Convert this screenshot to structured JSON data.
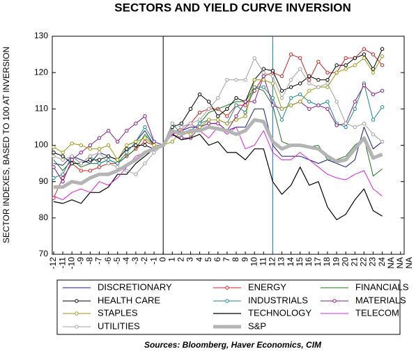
{
  "chart_data": {
    "type": "line",
    "title": "SECTORS AND YIELD CURVE INVERSION",
    "y_label": "SECTOR INDEXES, BASED TO 100 AT INVERSION",
    "source": "Sources:  Bloomberg, Haver Economics, CIM",
    "categories": [
      "-12",
      "-11",
      "-10",
      "-9",
      "-8",
      "-7",
      "-6",
      "-5",
      "-4",
      "-3",
      "-2",
      "-1",
      "0",
      "1",
      "2",
      "3",
      "4",
      "5",
      "6",
      "7",
      "8",
      "9",
      "10",
      "11",
      "12",
      "13",
      "14",
      "15",
      "16",
      "17",
      "18",
      "19",
      "20",
      "21",
      "22",
      "23",
      "24",
      "NA",
      "NA",
      "NA"
    ],
    "ylim": [
      70,
      130
    ],
    "yticks": [
      70,
      80,
      90,
      100,
      110,
      120,
      130
    ],
    "reference_lines": [
      {
        "at": "0",
        "color": "#000000"
      },
      {
        "at": "12",
        "color": "#1f6f9f"
      }
    ],
    "series": [
      {
        "name": "DISCRETIONARY",
        "color": "#1a1a8c",
        "markers": false,
        "width": 1,
        "values": [
          95,
          94.5,
          97,
          96,
          95,
          98,
          97,
          96,
          100,
          101,
          104,
          100,
          100,
          103,
          104,
          105,
          105,
          106,
          106,
          104,
          105,
          105,
          110,
          110,
          100,
          97,
          97,
          97,
          96,
          95,
          96,
          95,
          94,
          96,
          105,
          99,
          101,
          null,
          null,
          null
        ]
      },
      {
        "name": "ENERGY",
        "color": "#d42020",
        "markers": true,
        "width": 1,
        "values": [
          85.5,
          91,
          95,
          93,
          93,
          94,
          95,
          95,
          97,
          99,
          101,
          100,
          100,
          103,
          105,
          106,
          109,
          110,
          110,
          108,
          111,
          111,
          115,
          119,
          120,
          119,
          125,
          124,
          118,
          123,
          120,
          120,
          124,
          124,
          126.5,
          125,
          122,
          null,
          null,
          null
        ]
      },
      {
        "name": "FINANCIALS",
        "color": "#1a7a1a",
        "markers": false,
        "width": 1,
        "values": [
          96,
          93,
          96,
          94,
          95,
          95,
          96,
          95,
          97,
          99,
          103,
          100,
          100,
          104,
          103,
          104,
          106,
          109,
          110,
          111,
          112,
          112,
          116,
          115,
          111,
          101,
          100,
          100,
          99.5,
          100,
          96,
          96,
          97,
          100,
          102,
          91.5,
          93.5,
          null,
          null,
          null
        ]
      },
      {
        "name": "HEALTH CARE",
        "color": "#000000",
        "markers": true,
        "width": 1,
        "values": [
          98,
          97,
          95,
          95,
          96,
          96,
          97,
          96,
          99,
          100,
          100,
          99,
          100,
          105,
          106,
          110,
          114,
          112,
          108,
          110,
          113,
          112,
          118,
          121,
          120.5,
          115,
          116,
          117,
          119,
          118,
          118,
          122,
          122,
          124,
          125,
          121,
          126.5,
          null,
          null,
          null
        ]
      },
      {
        "name": "INDUSTRIALS",
        "color": "#1a8a8a",
        "markers": true,
        "width": 1,
        "values": [
          91,
          92,
          97,
          95,
          97,
          95,
          96,
          95,
          98,
          101,
          105,
          101,
          100,
          106,
          103,
          104,
          106,
          107,
          107,
          106,
          111,
          109,
          116,
          116,
          113,
          107,
          113,
          114,
          112,
          111,
          112,
          106,
          105,
          110,
          117,
          107,
          110.5,
          null,
          null,
          null
        ]
      },
      {
        "name": "MATERIALS",
        "color": "#8a1a8a",
        "markers": true,
        "width": 1,
        "values": [
          94,
          90,
          96,
          98,
          100,
          102,
          104,
          101,
          104,
          106,
          108,
          101,
          100,
          103,
          102,
          102,
          105,
          106,
          106,
          104,
          108,
          112,
          112,
          119,
          111,
          110,
          111,
          112,
          110,
          111,
          110,
          105.5,
          106,
          112,
          116.5,
          114,
          115,
          null,
          null,
          null
        ]
      },
      {
        "name": "STAPLES",
        "color": "#9a9a10",
        "markers": true,
        "width": 1,
        "values": [
          99.5,
          98,
          100.5,
          100,
          99,
          99,
          100,
          96,
          100,
          101,
          102,
          100,
          100,
          101,
          104,
          103,
          105,
          107,
          107,
          106,
          107,
          108,
          118,
          118,
          117,
          110,
          111,
          112,
          115,
          116,
          116,
          120,
          121,
          122,
          124,
          120,
          124.5,
          null,
          null,
          null
        ]
      },
      {
        "name": "TECHNOLOGY",
        "color": "#000000",
        "markers": false,
        "width": 1.2,
        "values": [
          84.5,
          84,
          85,
          84,
          87,
          87,
          88.5,
          92,
          92,
          95,
          97,
          99,
          100,
          103,
          101.5,
          102,
          103,
          100,
          101,
          98,
          98,
          96,
          99,
          99,
          90,
          86.5,
          89,
          94,
          89,
          90,
          83,
          79.5,
          81,
          85,
          88,
          82,
          80.5,
          null,
          null,
          null
        ]
      },
      {
        "name": "TELECOM",
        "color": "#e020e0",
        "markers": false,
        "width": 1,
        "values": [
          86,
          85,
          87,
          88,
          87,
          90,
          89,
          91,
          94,
          97,
          98,
          99,
          100,
          103,
          104,
          106,
          104,
          102,
          105,
          103,
          105,
          99,
          100,
          104,
          98,
          96,
          96,
          98,
          96,
          94,
          92,
          91,
          90.5,
          92,
          93,
          88,
          86,
          null,
          null,
          null
        ]
      },
      {
        "name": "UTILITIES",
        "color": "#a0a0a0",
        "markers": true,
        "width": 1,
        "values": [
          97,
          96,
          97,
          95,
          97,
          98,
          95,
          94,
          93,
          92,
          95,
          98,
          100,
          106,
          105,
          106,
          107,
          110,
          113,
          118,
          118,
          118,
          124,
          120,
          119,
          113,
          118,
          121,
          117,
          116,
          117,
          112,
          106,
          105,
          106,
          103,
          101,
          null,
          null,
          null
        ]
      },
      {
        "name": "S&P",
        "color": "#b4b4b4",
        "markers": false,
        "width": 5,
        "values": [
          88.5,
          88.5,
          90,
          89.5,
          91,
          92,
          92,
          93,
          94.5,
          96,
          98,
          99,
          100,
          104,
          103,
          104,
          104,
          105,
          104.5,
          104,
          103,
          104,
          107,
          106.5,
          101,
          99,
          100,
          100,
          99.5,
          99,
          97,
          95.5,
          96,
          99,
          102,
          96.5,
          97.5,
          null,
          null,
          null
        ]
      }
    ]
  }
}
